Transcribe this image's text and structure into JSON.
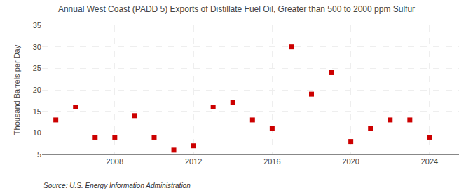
{
  "chart_data": {
    "type": "scatter",
    "title": "Annual West Coast (PADD 5) Exports of Distillate Fuel Oil, Greater than 500 to 2000 ppm Sulfur",
    "ylabel": "Thousand Barrels per Day",
    "source": "Source: U.S. Energy Information Administration",
    "x": [
      2005,
      2006,
      2007,
      2008,
      2009,
      2010,
      2011,
      2012,
      2013,
      2014,
      2015,
      2016,
      2017,
      2018,
      2019,
      2020,
      2021,
      2022,
      2023,
      2024
    ],
    "values": [
      13,
      16,
      9,
      9,
      14,
      9,
      6,
      7,
      16,
      17,
      13,
      11,
      30,
      19,
      24,
      8,
      11,
      13,
      13,
      9
    ],
    "color": "#cc0000",
    "marker": "square",
    "xlim": [
      2004.3,
      2025.5
    ],
    "xticks": [
      2008,
      2012,
      2016,
      2020,
      2024
    ],
    "ylim": [
      5,
      35
    ],
    "yticks": [
      5,
      10,
      15,
      20,
      25,
      30,
      35
    ],
    "grid": true
  }
}
